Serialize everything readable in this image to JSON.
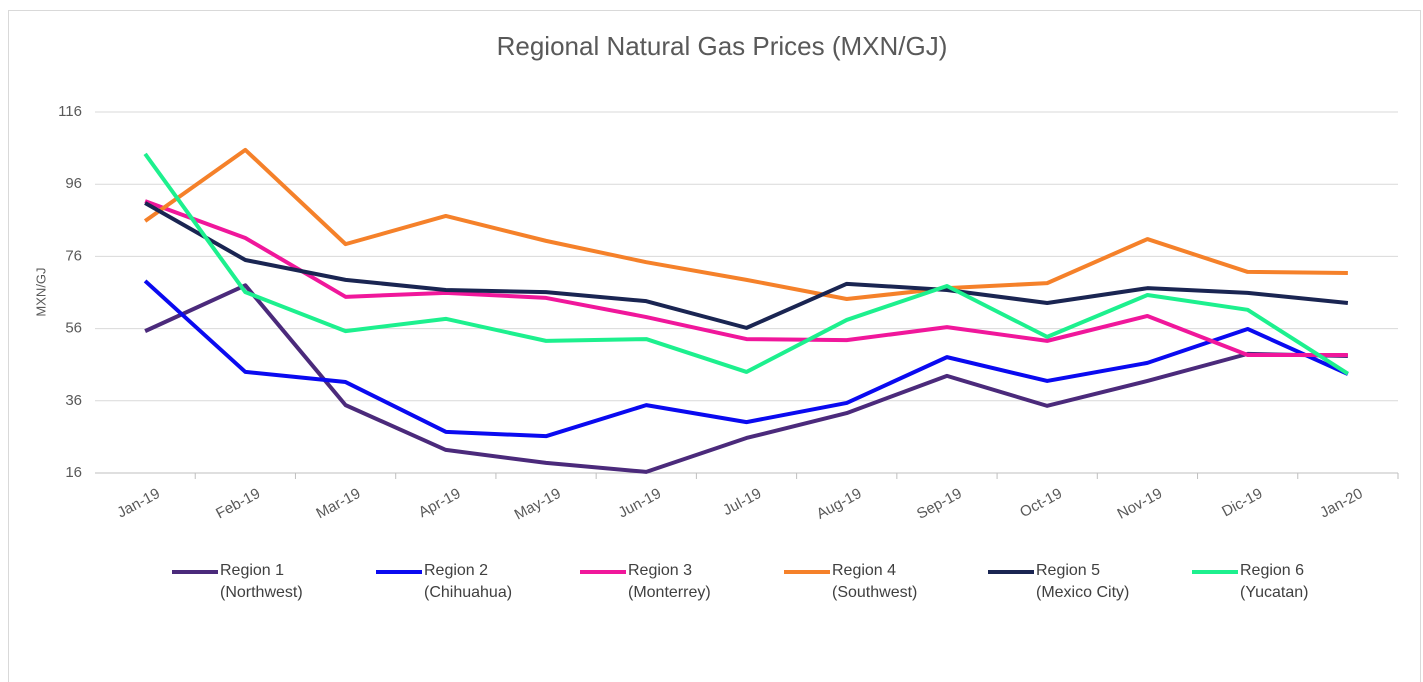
{
  "chart_data": {
    "type": "line",
    "title": "Regional Natural Gas Prices (MXN/GJ)",
    "y_label": "MXN/GJ",
    "categories": [
      "Jan-19",
      "Feb-19",
      "Mar-19",
      "Apr-19",
      "May-19",
      "Jun-19",
      "Jul-19",
      "Aug-19",
      "Sep-19",
      "Oct-19",
      "Nov-19",
      "Dic-19",
      "Jan-20"
    ],
    "ylim": [
      16,
      116
    ],
    "yticks": [
      16,
      36,
      56,
      76,
      96,
      116
    ],
    "grid": true,
    "legend": "bottom",
    "series": [
      {
        "name": "Region 1 (Northwest)",
        "color": "#4b2a7b",
        "values": [
          55.3,
          68,
          34.8,
          22.4,
          18.8,
          16.3,
          25.7,
          32.6,
          42.9,
          34.6,
          41.5,
          49,
          48.4
        ]
      },
      {
        "name": "Region 2 (Chihuahua)",
        "color": "#0a0af0",
        "values": [
          69.2,
          44,
          41.2,
          27.4,
          26.2,
          34.8,
          30.1,
          35.4,
          48.1,
          41.5,
          46.5,
          55.9,
          43.4
        ]
      },
      {
        "name": "Region 3 (Monterrey)",
        "color": "#f0179b",
        "values": [
          91.3,
          81.1,
          64.8,
          65.9,
          64.5,
          59.2,
          53.1,
          52.8,
          56.4,
          52.6,
          59.5,
          48.7,
          48.7
        ]
      },
      {
        "name": "Region 4 (Southwest)",
        "color": "#f5812a",
        "values": [
          85.8,
          105.5,
          79.4,
          87.2,
          80.3,
          74.4,
          69.5,
          64.2,
          67.2,
          68.6,
          80.8,
          71.7,
          71.4
        ]
      },
      {
        "name": "Region 5 (Mexico City)",
        "color": "#1a2552",
        "values": [
          90.8,
          75,
          69.5,
          66.7,
          66.1,
          63.6,
          56.2,
          68.4,
          66.7,
          63.1,
          67.2,
          65.9,
          63.1
        ]
      },
      {
        "name": "Region 6 (Yucatan)",
        "color": "#1df08e",
        "values": [
          104.4,
          66.1,
          55.3,
          58.7,
          52.6,
          53.1,
          44,
          58.4,
          67.8,
          53.7,
          65.3,
          61.2,
          43.5
        ]
      }
    ]
  }
}
